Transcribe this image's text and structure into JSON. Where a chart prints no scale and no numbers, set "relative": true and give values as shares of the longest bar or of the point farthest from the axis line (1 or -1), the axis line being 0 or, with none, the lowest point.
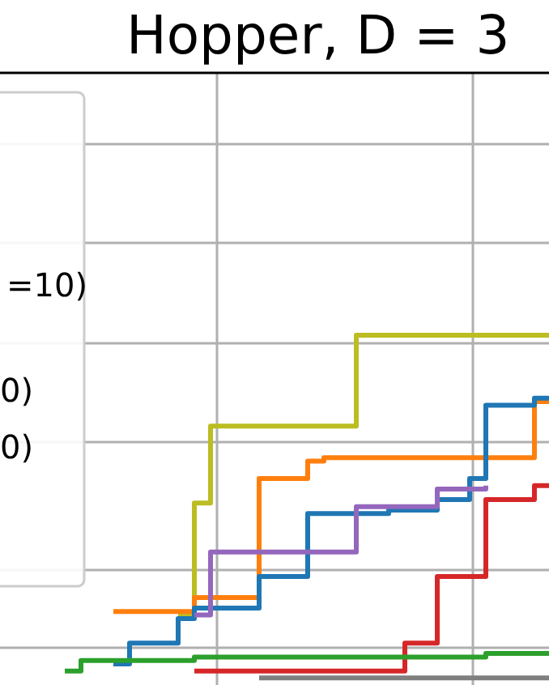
{
  "chart_data": {
    "type": "step",
    "title": "Hopper, D = 3",
    "relative": true,
    "grid": true,
    "legend": false,
    "annotations": [
      "=10)",
      "0)",
      "0)"
    ],
    "categories": [
      null,
      null,
      null,
      null,
      null,
      null,
      null,
      null,
      null,
      null,
      null,
      null,
      null,
      null,
      null,
      null,
      null,
      null,
      null,
      null,
      null,
      null,
      null,
      null,
      null,
      null,
      null,
      null,
      null,
      null,
      null,
      null,
      null,
      null,
      null
    ],
    "series": [
      {
        "color": "#bcbd22",
        "values": [
          null,
          null,
          null,
          null,
          null,
          null,
          null,
          null,
          null,
          null,
          null,
          0.2,
          0.52,
          0.74,
          0.74,
          0.74,
          0.74,
          0.74,
          0.74,
          0.74,
          0.74,
          0.74,
          1,
          1,
          1,
          1,
          1,
          1,
          1,
          1,
          1,
          1,
          1,
          1,
          1
        ]
      },
      {
        "color": "#ff7f0e",
        "values": [
          null,
          null,
          null,
          null,
          null,
          null,
          null,
          0.21,
          0.21,
          0.21,
          0.21,
          0.21,
          0.25,
          0.25,
          0.25,
          0.25,
          0.59,
          0.59,
          0.59,
          0.64,
          0.65,
          0.65,
          0.65,
          0.65,
          0.65,
          0.65,
          0.65,
          0.65,
          0.65,
          0.65,
          0.65,
          0.65,
          0.65,
          0.81,
          0.81
        ]
      },
      {
        "color": "#1f77b4",
        "values": [
          null,
          null,
          null,
          null,
          null,
          null,
          null,
          0.06,
          0.12,
          0.12,
          0.12,
          0.19,
          0.22,
          0.22,
          0.22,
          0.22,
          0.31,
          0.31,
          0.31,
          0.49,
          0.49,
          0.49,
          0.49,
          0.49,
          0.5,
          0.5,
          0.5,
          0.53,
          0.53,
          0.59,
          0.8,
          0.8,
          0.8,
          0.82,
          0.82
        ]
      },
      {
        "color": "#9467bd",
        "values": [
          null,
          null,
          null,
          null,
          null,
          null,
          null,
          null,
          null,
          null,
          null,
          null,
          0.2,
          0.38,
          0.38,
          0.38,
          0.38,
          0.38,
          0.38,
          0.38,
          0.38,
          0.38,
          0.51,
          0.51,
          0.51,
          0.51,
          0.51,
          0.56,
          0.56,
          0.56,
          0.57,
          null,
          null,
          null,
          null
        ]
      },
      {
        "color": "#d62728",
        "values": [
          null,
          null,
          null,
          null,
          null,
          null,
          null,
          null,
          null,
          null,
          null,
          null,
          0.04,
          0.04,
          0.04,
          0.04,
          0.04,
          0.04,
          0.04,
          0.04,
          0.04,
          0.04,
          0.04,
          0.04,
          0.04,
          0.12,
          0.12,
          0.31,
          0.31,
          0.31,
          0.53,
          0.53,
          0.53,
          0.57,
          0.57
        ]
      },
      {
        "color": "#2ca02c",
        "values": [
          null,
          null,
          null,
          null,
          0.04,
          0.07,
          0.07,
          0.07,
          0.07,
          0.07,
          0.07,
          0.07,
          0.08,
          0.08,
          0.08,
          0.08,
          0.08,
          0.08,
          0.08,
          0.08,
          0.08,
          0.08,
          0.08,
          0.08,
          0.08,
          0.08,
          0.08,
          0.08,
          0.08,
          0.08,
          0.09,
          0.09,
          0.09,
          0.09,
          0.09
        ]
      },
      {
        "color": "#7f7f7f",
        "values": [
          null,
          null,
          null,
          null,
          null,
          null,
          null,
          null,
          null,
          null,
          null,
          null,
          null,
          null,
          null,
          null,
          0.02,
          0.02,
          0.02,
          0.02,
          0.02,
          0.02,
          0.02,
          0.02,
          0.02,
          0.02,
          0.02,
          0.02,
          0.02,
          0.02,
          0.02,
          0.02,
          0.02,
          0.02,
          0.02
        ]
      }
    ]
  }
}
